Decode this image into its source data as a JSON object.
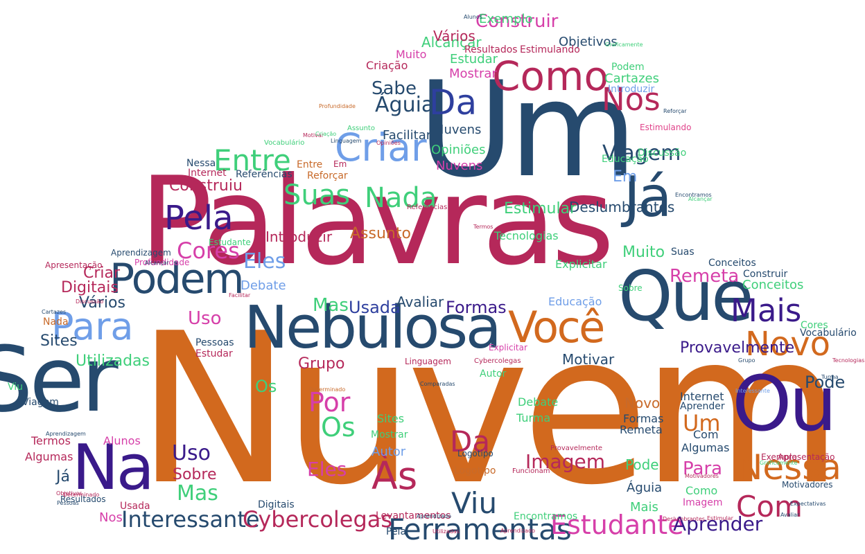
{
  "palette": {
    "orange": "#d2691e",
    "crimson": "#b5285a",
    "navy": "#264a6e",
    "indigo": "#3a1a8a",
    "royal": "#2e3f9e",
    "sky": "#6f9ee8",
    "green": "#3fcf7a",
    "magenta": "#d63fa9",
    "pink": "#e0438a",
    "rust": "#c86a2a"
  },
  "words": [
    {
      "text": "Nuvem",
      "color": "orange"
    },
    {
      "text": "Palavras",
      "color": "crimson"
    },
    {
      "text": "Um",
      "color": "navy"
    },
    {
      "text": "Ser",
      "color": "navy"
    },
    {
      "text": "Nebulosa",
      "color": "navy"
    },
    {
      "text": "Que",
      "color": "navy"
    },
    {
      "text": "Ou",
      "color": "indigo"
    },
    {
      "text": "Na",
      "color": "indigo"
    },
    {
      "text": "Você",
      "color": "orange"
    },
    {
      "text": "Já",
      "color": "navy"
    },
    {
      "text": "Como",
      "color": "crimson"
    },
    {
      "text": "Podem",
      "color": "navy"
    },
    {
      "text": "Para",
      "color": "sky"
    },
    {
      "text": "Criar",
      "color": "sky"
    },
    {
      "text": "Entre",
      "color": "green"
    },
    {
      "text": "Da",
      "color": "royal"
    },
    {
      "text": "Nos",
      "color": "crimson"
    },
    {
      "text": "Águia",
      "color": "navy"
    },
    {
      "text": "Viagem",
      "color": "navy"
    },
    {
      "text": "Pela",
      "color": "indigo"
    },
    {
      "text": "Suas",
      "color": "green"
    },
    {
      "text": "Nada",
      "color": "green"
    },
    {
      "text": "Cores",
      "color": "magenta"
    },
    {
      "text": "Mais",
      "color": "indigo"
    },
    {
      "text": "Novo",
      "color": "orange"
    },
    {
      "text": "Nessa",
      "color": "orange"
    },
    {
      "text": "Com",
      "color": "crimson"
    },
    {
      "text": "Por",
      "color": "magenta"
    },
    {
      "text": "Os",
      "color": "green"
    },
    {
      "text": "Às",
      "color": "crimson"
    },
    {
      "text": "Da",
      "color": "crimson"
    },
    {
      "text": "Viu",
      "color": "navy"
    },
    {
      "text": "Ferramentas",
      "color": "navy"
    },
    {
      "text": "Estudante",
      "color": "magenta"
    },
    {
      "text": "Interessante",
      "color": "navy"
    },
    {
      "text": "Cybercolegas",
      "color": "crimson"
    },
    {
      "text": "Aprender",
      "color": "indigo"
    },
    {
      "text": "Imagem",
      "color": "crimson"
    },
    {
      "text": "Construir",
      "color": "magenta"
    },
    {
      "text": "Sabe",
      "color": "navy"
    },
    {
      "text": "Remeta",
      "color": "magenta"
    },
    {
      "text": "Eles",
      "color": "sky"
    },
    {
      "text": "Usada",
      "color": "royal"
    },
    {
      "text": "Formas",
      "color": "indigo"
    },
    {
      "text": "Uso",
      "color": "magenta"
    },
    {
      "text": "Mas",
      "color": "green"
    },
    {
      "text": "Eles",
      "color": "magenta"
    },
    {
      "text": "Sobre",
      "color": "crimson"
    },
    {
      "text": "Uso",
      "color": "indigo"
    },
    {
      "text": "Mas",
      "color": "green"
    },
    {
      "text": "Pode",
      "color": "navy"
    },
    {
      "text": "Um",
      "color": "orange"
    },
    {
      "text": "Para",
      "color": "magenta"
    },
    {
      "text": "Em",
      "color": "sky"
    },
    {
      "text": "Os",
      "color": "green"
    },
    {
      "text": "Utilizadas",
      "color": "green"
    },
    {
      "text": "Sites",
      "color": "navy"
    },
    {
      "text": "Vários",
      "color": "navy"
    },
    {
      "text": "Digitais",
      "color": "crimson"
    },
    {
      "text": "Criar",
      "color": "crimson"
    },
    {
      "text": "Construiu",
      "color": "crimson"
    },
    {
      "text": "Provavelmente",
      "color": "indigo"
    },
    {
      "text": "Deslumbrantes",
      "color": "navy"
    },
    {
      "text": "Estimular",
      "color": "green"
    },
    {
      "text": "Muito",
      "color": "green"
    },
    {
      "text": "Avaliar",
      "color": "navy"
    },
    {
      "text": "Motivar",
      "color": "navy"
    },
    {
      "text": "Grupo",
      "color": "crimson"
    },
    {
      "text": "Assunto",
      "color": "rust"
    },
    {
      "text": "Introduzir",
      "color": "crimson"
    },
    {
      "text": "Facilitar",
      "color": "navy"
    },
    {
      "text": "Nuvens",
      "color": "navy"
    },
    {
      "text": "Opiniões",
      "color": "green"
    },
    {
      "text": "Nuvens",
      "color": "magenta"
    },
    {
      "text": "Mostrar",
      "color": "magenta"
    },
    {
      "text": "Estudar",
      "color": "green"
    },
    {
      "text": "Criação",
      "color": "crimson"
    },
    {
      "text": "Muito",
      "color": "magenta"
    },
    {
      "text": "Alcançar",
      "color": "green"
    },
    {
      "text": "Vários",
      "color": "crimson"
    },
    {
      "text": "Exemplo",
      "color": "green"
    },
    {
      "text": "Objetivos",
      "color": "navy"
    },
    {
      "text": "Resultados",
      "color": "crimson"
    },
    {
      "text": "Estimulando",
      "color": "crimson"
    },
    {
      "text": "Podem",
      "color": "green"
    },
    {
      "text": "Cartazes",
      "color": "green"
    },
    {
      "text": "Introduzir",
      "color": "sky"
    },
    {
      "text": "Estimulando",
      "color": "pink"
    },
    {
      "text": "Discussão",
      "color": "green"
    },
    {
      "text": "Educação",
      "color": "green"
    },
    {
      "text": "Tecnologias",
      "color": "green"
    },
    {
      "text": "Explicitar",
      "color": "green"
    },
    {
      "text": "Suas",
      "color": "navy"
    },
    {
      "text": "Conceitos",
      "color": "navy"
    },
    {
      "text": "Construir",
      "color": "navy"
    },
    {
      "text": "Conceitos",
      "color": "green"
    },
    {
      "text": "Debate",
      "color": "sky"
    },
    {
      "text": "Educação",
      "color": "sky"
    },
    {
      "text": "Sobre",
      "color": "green"
    },
    {
      "text": "Vocabulário",
      "color": "navy"
    },
    {
      "text": "Cores",
      "color": "green"
    },
    {
      "text": "Internet",
      "color": "navy"
    },
    {
      "text": "Aprender",
      "color": "navy"
    },
    {
      "text": "Novo",
      "color": "rust"
    },
    {
      "text": "Formas",
      "color": "navy"
    },
    {
      "text": "Remeta",
      "color": "navy"
    },
    {
      "text": "Com",
      "color": "navy"
    },
    {
      "text": "Algumas",
      "color": "navy"
    },
    {
      "text": "Pode",
      "color": "green"
    },
    {
      "text": "Águia",
      "color": "navy"
    },
    {
      "text": "Mais",
      "color": "green"
    },
    {
      "text": "Como",
      "color": "green"
    },
    {
      "text": "Imagem",
      "color": "magenta"
    },
    {
      "text": "Debate",
      "color": "green"
    },
    {
      "text": "Turma",
      "color": "green"
    },
    {
      "text": "Sites",
      "color": "green"
    },
    {
      "text": "Mostrar",
      "color": "green"
    },
    {
      "text": "Autor",
      "color": "sky"
    },
    {
      "text": "Logotipo",
      "color": "navy"
    },
    {
      "text": "Logotipo",
      "color": "rust"
    },
    {
      "text": "Digitais",
      "color": "navy"
    },
    {
      "text": "Levantamentos",
      "color": "crimson"
    },
    {
      "text": "Encontramos",
      "color": "green"
    },
    {
      "text": "Pela",
      "color": "navy"
    },
    {
      "text": "Usada",
      "color": "crimson"
    },
    {
      "text": "Nos",
      "color": "magenta"
    },
    {
      "text": "Termos",
      "color": "crimson"
    },
    {
      "text": "Algumas",
      "color": "crimson"
    },
    {
      "text": "Alunos",
      "color": "magenta"
    },
    {
      "text": "Já",
      "color": "navy"
    },
    {
      "text": "Viagem",
      "color": "navy"
    },
    {
      "text": "Viu",
      "color": "green"
    },
    {
      "text": "Nada",
      "color": "rust"
    },
    {
      "text": "Pessoas",
      "color": "navy"
    },
    {
      "text": "Estudar",
      "color": "crimson"
    },
    {
      "text": "Linguagem",
      "color": "crimson"
    },
    {
      "text": "Autor",
      "color": "green"
    },
    {
      "text": "Referências",
      "color": "navy"
    },
    {
      "text": "Internet",
      "color": "crimson"
    },
    {
      "text": "Nessa",
      "color": "navy"
    },
    {
      "text": "Reforçar",
      "color": "rust"
    },
    {
      "text": "Entre",
      "color": "rust"
    },
    {
      "text": "Em",
      "color": "crimson"
    },
    {
      "text": "Estudante",
      "color": "green"
    },
    {
      "text": "Profundidade",
      "color": "magenta"
    },
    {
      "text": "Explicitar",
      "color": "magenta"
    },
    {
      "text": "Grupo",
      "color": "navy"
    },
    {
      "text": "Turma",
      "color": "navy"
    },
    {
      "text": "Exemplo",
      "color": "crimson"
    },
    {
      "text": "Apresentação",
      "color": "crimson"
    },
    {
      "text": "Motivadores",
      "color": "navy"
    },
    {
      "text": "Expectativas",
      "color": "navy"
    },
    {
      "text": "Avaliar",
      "color": "navy"
    },
    {
      "text": "Estimular",
      "color": "crimson"
    },
    {
      "text": "Aprendizagem",
      "color": "navy"
    },
    {
      "text": "Apresentação",
      "color": "crimson"
    },
    {
      "text": "Motivar",
      "color": "crimson"
    },
    {
      "text": "Termos",
      "color": "crimson"
    },
    {
      "text": "Referências",
      "color": "crimson"
    },
    {
      "text": "Comparadas",
      "color": "navy"
    },
    {
      "text": "Determinado",
      "color": "rust"
    },
    {
      "text": "Resultados",
      "color": "navy"
    },
    {
      "text": "Utilizadas",
      "color": "crimson"
    },
    {
      "text": "Aprendizado",
      "color": "navy"
    },
    {
      "text": "Funcionam",
      "color": "crimson"
    },
    {
      "text": "Provavelmente",
      "color": "crimson"
    },
    {
      "text": "Cybercolegas",
      "color": "crimson"
    },
    {
      "text": "Graficamente",
      "color": "green"
    },
    {
      "text": "Deslumbrantes",
      "color": "crimson"
    },
    {
      "text": "Motivadores",
      "color": "crimson"
    },
    {
      "text": "Aprendizagem",
      "color": "navy"
    },
    {
      "text": "Determinado",
      "color": "crimson"
    },
    {
      "text": "Objetivos",
      "color": "crimson"
    },
    {
      "text": "Aprendizado",
      "color": "crimson"
    },
    {
      "text": "Pessoas",
      "color": "navy"
    },
    {
      "text": "Facilitar",
      "color": "crimson"
    },
    {
      "text": "Alcançar",
      "color": "navy"
    },
    {
      "text": "Cartazes",
      "color": "navy"
    },
    {
      "text": "Profundidade",
      "color": "rust"
    },
    {
      "text": "Assunto",
      "color": "green"
    },
    {
      "text": "Linguagem",
      "color": "navy"
    },
    {
      "text": "Reforçar",
      "color": "navy"
    },
    {
      "text": "Encontramos",
      "color": "navy"
    },
    {
      "text": "Discussão",
      "color": "crimson"
    },
    {
      "text": "Tecnologias",
      "color": "crimson"
    },
    {
      "text": "Alunos",
      "color": "navy"
    },
    {
      "text": "Vocabulário",
      "color": "green"
    },
    {
      "text": "Opiniões",
      "color": "crimson"
    },
    {
      "text": "Interessante",
      "color": "sky"
    },
    {
      "text": "Criação",
      "color": "green"
    },
    {
      "text": "Graficamente",
      "color": "green"
    },
    {
      "text": "Alcançar",
      "color": "green"
    },
    {
      "text": "Expectativas",
      "color": "green"
    }
  ]
}
